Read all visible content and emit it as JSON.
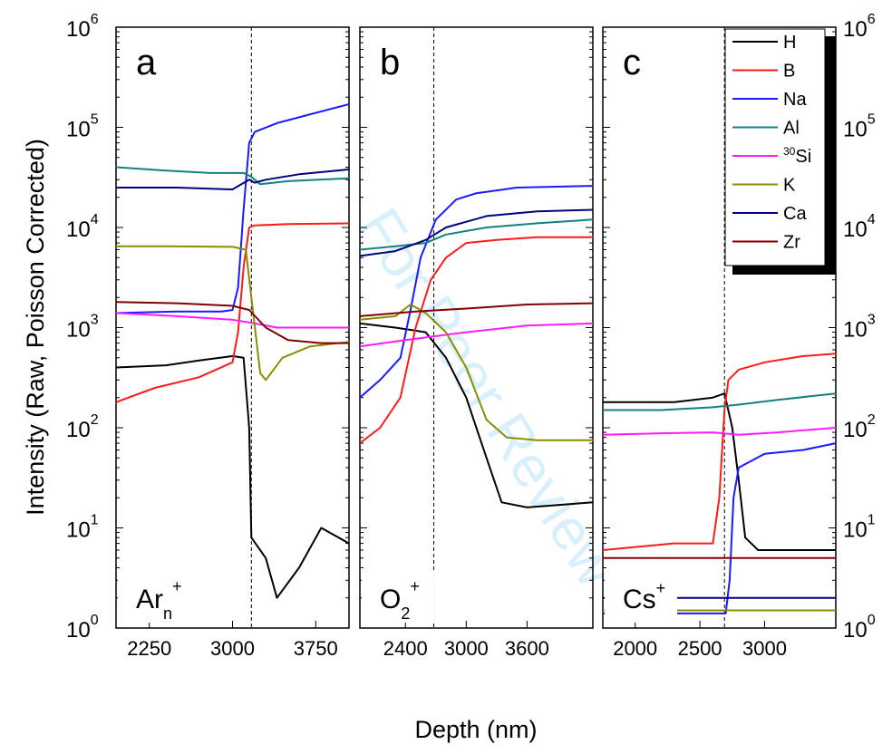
{
  "figure": {
    "ylabel": "Intensity (Raw, Poisson Corrected)",
    "xlabel": "Depth (nm)",
    "watermark": "For Peer Review"
  },
  "colors": {
    "H": "#000000",
    "B": "#ff1a1a",
    "Na": "#1a1aff",
    "Al": "#148080",
    "30Si": "#ff1aff",
    "K": "#8c8c00",
    "Ca": "#000080",
    "Zr": "#800000"
  },
  "legend": {
    "entries": [
      {
        "key": "H",
        "label": "H"
      },
      {
        "key": "B",
        "label": "B"
      },
      {
        "key": "Na",
        "label": "Na"
      },
      {
        "key": "Al",
        "label": "Al"
      },
      {
        "key": "30Si",
        "label": "Si",
        "sup": "30"
      },
      {
        "key": "K",
        "label": "K"
      },
      {
        "key": "Ca",
        "label": "Ca"
      },
      {
        "key": "Zr",
        "label": "Zr"
      }
    ]
  },
  "chart_data": [
    {
      "type": "line",
      "panel_label": "a",
      "beam_label": "Ar",
      "beam_sub": "n",
      "beam_sup": "+",
      "yscale": "log",
      "ylim": [
        1,
        1000000
      ],
      "xlim": [
        1950,
        4050
      ],
      "xticks": [
        2250,
        3000,
        3750
      ],
      "interface_x": 3170,
      "series": [
        {
          "key": "H",
          "x": [
            1950,
            2400,
            2700,
            3000,
            3100,
            3150,
            3170,
            3300,
            3400,
            3600,
            3800,
            4050
          ],
          "y": [
            400,
            420,
            470,
            520,
            500,
            100,
            8,
            5,
            2,
            4,
            10,
            7
          ]
        },
        {
          "key": "B",
          "x": [
            1950,
            2300,
            2700,
            3000,
            3050,
            3100,
            3150,
            3200,
            3500,
            4050
          ],
          "y": [
            180,
            250,
            320,
            450,
            900,
            4000,
            10000,
            10500,
            10800,
            11000
          ]
        },
        {
          "key": "Na",
          "x": [
            1950,
            2500,
            2900,
            3000,
            3050,
            3100,
            3150,
            3200,
            3400,
            3700,
            4050
          ],
          "y": [
            1400,
            1450,
            1450,
            1500,
            2500,
            15000,
            70000,
            90000,
            110000,
            135000,
            170000
          ]
        },
        {
          "key": "Al",
          "x": [
            1950,
            2400,
            2800,
            3100,
            3170,
            3250,
            3500,
            4050
          ],
          "y": [
            40000,
            37000,
            35000,
            35000,
            32000,
            27000,
            29000,
            31000
          ]
        },
        {
          "key": "30Si",
          "x": [
            1950,
            2500,
            3000,
            3200,
            3400,
            3700,
            4050
          ],
          "y": [
            1400,
            1300,
            1200,
            1100,
            1000,
            1000,
            1000
          ]
        },
        {
          "key": "K",
          "x": [
            1950,
            2400,
            3000,
            3120,
            3170,
            3250,
            3300,
            3450,
            3700,
            4050
          ],
          "y": [
            6500,
            6500,
            6400,
            6000,
            2000,
            350,
            300,
            500,
            650,
            720
          ]
        },
        {
          "key": "Ca",
          "x": [
            1950,
            2500,
            3000,
            3150,
            3200,
            3300,
            3600,
            4050
          ],
          "y": [
            25000,
            25000,
            24000,
            30000,
            28000,
            30000,
            34000,
            38000
          ]
        },
        {
          "key": "Zr",
          "x": [
            1950,
            2500,
            3000,
            3150,
            3300,
            3500,
            3800,
            4050
          ],
          "y": [
            1800,
            1750,
            1650,
            1500,
            1000,
            750,
            700,
            700
          ]
        }
      ]
    },
    {
      "type": "line",
      "panel_label": "b",
      "beam_label": "O",
      "beam_sub": "2",
      "beam_sup": "+",
      "yscale": "log",
      "ylim": [
        1,
        1000000
      ],
      "xlim": [
        1950,
        4250
      ],
      "xticks": [
        2400,
        3000,
        3600
      ],
      "interface_x": 2680,
      "series": [
        {
          "key": "H",
          "x": [
            1950,
            2300,
            2450,
            2600,
            2800,
            3000,
            3200,
            3350,
            3600,
            4250
          ],
          "y": [
            1100,
            1000,
            950,
            900,
            500,
            200,
            50,
            18,
            16,
            18
          ]
        },
        {
          "key": "B",
          "x": [
            1950,
            2150,
            2350,
            2500,
            2650,
            2800,
            3000,
            3300,
            3700,
            4250
          ],
          "y": [
            70,
            100,
            200,
            1000,
            3000,
            5000,
            7000,
            7500,
            8000,
            8000
          ]
        },
        {
          "key": "Na",
          "x": [
            1950,
            2150,
            2350,
            2450,
            2550,
            2700,
            2900,
            3100,
            3500,
            4250
          ],
          "y": [
            200,
            300,
            500,
            1500,
            5000,
            12000,
            19000,
            22000,
            25000,
            26000
          ]
        },
        {
          "key": "Al",
          "x": [
            1950,
            2300,
            2600,
            2800,
            3200,
            3700,
            4250
          ],
          "y": [
            6000,
            6500,
            7000,
            8500,
            10000,
            11000,
            12000
          ]
        },
        {
          "key": "30Si",
          "x": [
            1950,
            2400,
            3000,
            3600,
            4250
          ],
          "y": [
            650,
            750,
            900,
            1050,
            1100
          ]
        },
        {
          "key": "K",
          "x": [
            1950,
            2300,
            2450,
            2600,
            2800,
            3000,
            3200,
            3400,
            3700,
            4250
          ],
          "y": [
            1200,
            1300,
            1700,
            1400,
            900,
            400,
            120,
            80,
            75,
            75
          ]
        },
        {
          "key": "Ca",
          "x": [
            1950,
            2300,
            2600,
            2800,
            3200,
            3700,
            4250
          ],
          "y": [
            5200,
            5800,
            7500,
            10000,
            13000,
            14500,
            15000
          ]
        },
        {
          "key": "Zr",
          "x": [
            1950,
            2500,
            3000,
            3600,
            4250
          ],
          "y": [
            1300,
            1450,
            1550,
            1700,
            1750
          ]
        }
      ]
    },
    {
      "type": "line",
      "panel_label": "c",
      "beam_label": "Cs",
      "beam_sup": "+",
      "yscale": "log",
      "ylim": [
        1,
        1000000
      ],
      "xlim": [
        1750,
        3550
      ],
      "xticks": [
        2000,
        2500,
        3000
      ],
      "interface_x": 2690,
      "series": [
        {
          "key": "H",
          "x": [
            1750,
            2300,
            2600,
            2690,
            2750,
            2800,
            2850,
            2950,
            3200,
            3550
          ],
          "y": [
            180,
            180,
            200,
            220,
            100,
            30,
            8,
            6,
            6,
            6
          ]
        },
        {
          "key": "B",
          "x": [
            1750,
            2300,
            2600,
            2650,
            2690,
            2720,
            2800,
            3000,
            3300,
            3550
          ],
          "y": [
            6,
            7,
            7,
            20,
            150,
            300,
            380,
            450,
            520,
            550
          ]
        },
        {
          "key": "Na",
          "x": [
            1750,
            2500,
            2700,
            2730,
            2760,
            2800,
            3000,
            3300,
            3550
          ],
          "y": [
            1.4,
            1.4,
            1.4,
            3,
            20,
            40,
            55,
            60,
            70
          ]
        },
        {
          "key": "Al",
          "x": [
            1750,
            2200,
            2600,
            2800,
            3100,
            3550
          ],
          "y": [
            150,
            150,
            160,
            170,
            190,
            220
          ]
        },
        {
          "key": "30Si",
          "x": [
            1750,
            2200,
            2600,
            2800,
            3100,
            3550
          ],
          "y": [
            85,
            88,
            90,
            85,
            90,
            100
          ]
        },
        {
          "key": "K",
          "x": [
            1750,
            2500,
            3000,
            3550
          ],
          "y": [
            1.5,
            1.5,
            1.5,
            1.5
          ]
        },
        {
          "key": "Ca",
          "x": [
            1750,
            2500,
            3000,
            3550
          ],
          "y": [
            2,
            2,
            2,
            2
          ]
        },
        {
          "key": "Zr",
          "x": [
            1750,
            2500,
            3000,
            3550
          ],
          "y": [
            5,
            5,
            5,
            5
          ]
        }
      ]
    }
  ],
  "yticks": [
    {
      "base": "10",
      "exp": "0"
    },
    {
      "base": "10",
      "exp": "1"
    },
    {
      "base": "10",
      "exp": "2"
    },
    {
      "base": "10",
      "exp": "3"
    },
    {
      "base": "10",
      "exp": "4"
    },
    {
      "base": "10",
      "exp": "5"
    },
    {
      "base": "10",
      "exp": "6"
    }
  ]
}
